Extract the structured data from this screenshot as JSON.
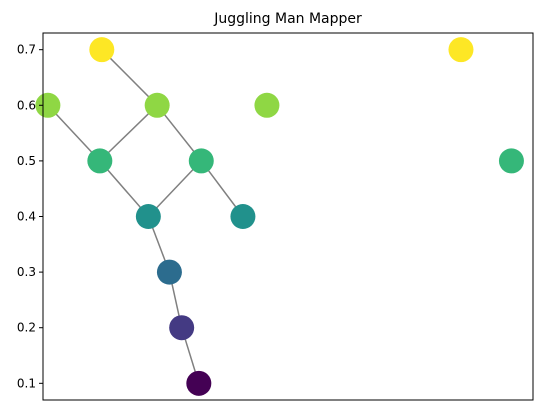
{
  "chart_data": {
    "type": "scatter",
    "title": "Juggling Man Mapper",
    "xlabel": "",
    "ylabel": "",
    "ylim": [
      0.07,
      0.73
    ],
    "xlim": [
      0,
      100
    ],
    "y_ticks": [
      "0.1",
      "0.2",
      "0.3",
      "0.4",
      "0.5",
      "0.6",
      "0.7"
    ],
    "x_ticks_visible": false,
    "grid": false,
    "legend": "none",
    "colormap": "viridis",
    "edge_color": "#808080",
    "nodes": [
      {
        "id": "n1",
        "x": 12.0,
        "y": 0.7,
        "color": "#fde725"
      },
      {
        "id": "n2",
        "x": 1.0,
        "y": 0.6,
        "color": "#8fd744"
      },
      {
        "id": "n3",
        "x": 23.3,
        "y": 0.6,
        "color": "#8fd744"
      },
      {
        "id": "n4",
        "x": 11.6,
        "y": 0.5,
        "color": "#35b779"
      },
      {
        "id": "n5",
        "x": 32.3,
        "y": 0.5,
        "color": "#35b779"
      },
      {
        "id": "n6",
        "x": 21.5,
        "y": 0.4,
        "color": "#21918c"
      },
      {
        "id": "n7",
        "x": 40.8,
        "y": 0.4,
        "color": "#21918c"
      },
      {
        "id": "n8",
        "x": 25.8,
        "y": 0.3,
        "color": "#2c6c8e"
      },
      {
        "id": "n9",
        "x": 28.3,
        "y": 0.2,
        "color": "#443a83"
      },
      {
        "id": "n10",
        "x": 31.8,
        "y": 0.1,
        "color": "#440154"
      },
      {
        "id": "n11",
        "x": 45.7,
        "y": 0.6,
        "color": "#8fd744"
      },
      {
        "id": "n12",
        "x": 85.3,
        "y": 0.7,
        "color": "#fde725"
      },
      {
        "id": "n13",
        "x": 95.6,
        "y": 0.5,
        "color": "#35b779"
      }
    ],
    "edges": [
      [
        "n1",
        "n3"
      ],
      [
        "n2",
        "n4"
      ],
      [
        "n3",
        "n4"
      ],
      [
        "n3",
        "n5"
      ],
      [
        "n4",
        "n6"
      ],
      [
        "n5",
        "n6"
      ],
      [
        "n5",
        "n7"
      ],
      [
        "n6",
        "n8"
      ],
      [
        "n8",
        "n9"
      ],
      [
        "n9",
        "n10"
      ]
    ]
  }
}
